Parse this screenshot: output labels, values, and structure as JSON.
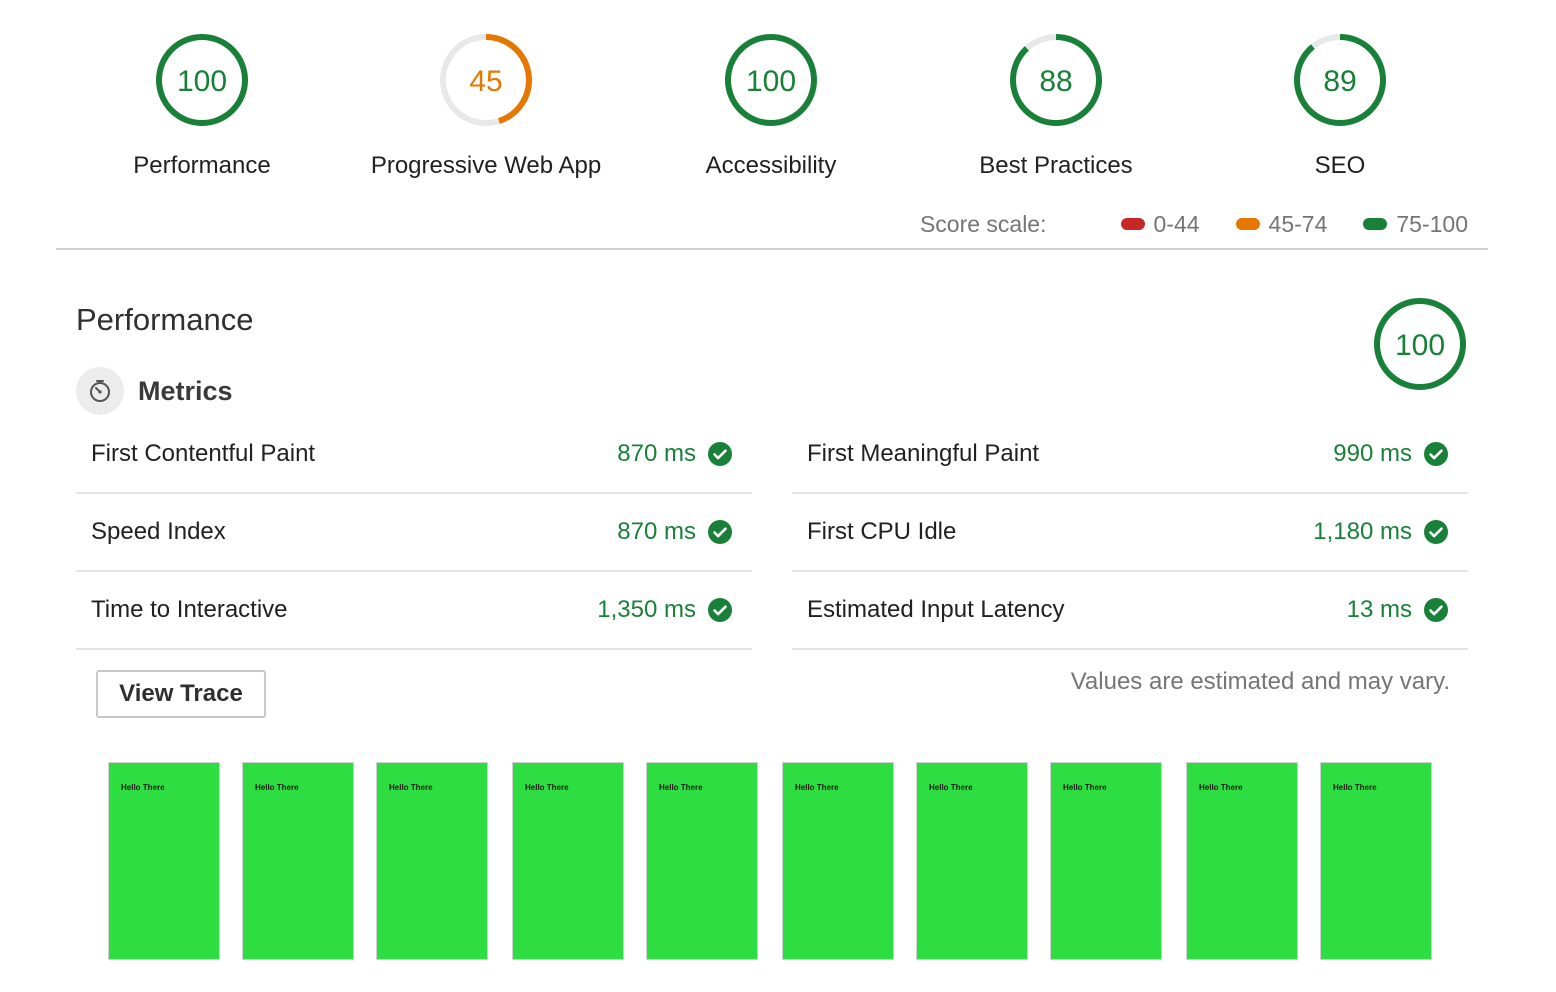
{
  "colors": {
    "pass": "#188038",
    "average": "#e67700",
    "fail": "#c62828",
    "track": "#e8e8e8"
  },
  "gauges": [
    {
      "label": "Performance",
      "score": 100,
      "color": "#188038"
    },
    {
      "label": "Progressive Web App",
      "score": 45,
      "color": "#e67700"
    },
    {
      "label": "Accessibility",
      "score": 100,
      "color": "#188038"
    },
    {
      "label": "Best Practices",
      "score": 88,
      "color": "#188038"
    },
    {
      "label": "SEO",
      "score": 89,
      "color": "#188038"
    }
  ],
  "score_scale": {
    "title": "Score scale:",
    "ranges": [
      {
        "label": "0-44",
        "color": "#c62828"
      },
      {
        "label": "45-74",
        "color": "#e67700"
      },
      {
        "label": "75-100",
        "color": "#188038"
      }
    ]
  },
  "performance": {
    "title": "Performance",
    "score": 100,
    "metrics_title": "Metrics",
    "icon": "stopwatch-icon",
    "metrics_left": [
      {
        "name": "First Contentful Paint",
        "value": "870 ms"
      },
      {
        "name": "Speed Index",
        "value": "870 ms"
      },
      {
        "name": "Time to Interactive",
        "value": "1,350 ms"
      }
    ],
    "metrics_right": [
      {
        "name": "First Meaningful Paint",
        "value": "990 ms"
      },
      {
        "name": "First CPU Idle",
        "value": "1,180 ms"
      },
      {
        "name": "Estimated Input Latency",
        "value": "13 ms"
      }
    ],
    "view_trace_label": "View Trace",
    "note": "Values are estimated and may vary."
  },
  "filmstrip": {
    "frame_color": "#2edd41",
    "frames": [
      "Hello There",
      "Hello There",
      "Hello There",
      "Hello There",
      "Hello There",
      "Hello There",
      "Hello There",
      "Hello There",
      "Hello There",
      "Hello There"
    ]
  }
}
